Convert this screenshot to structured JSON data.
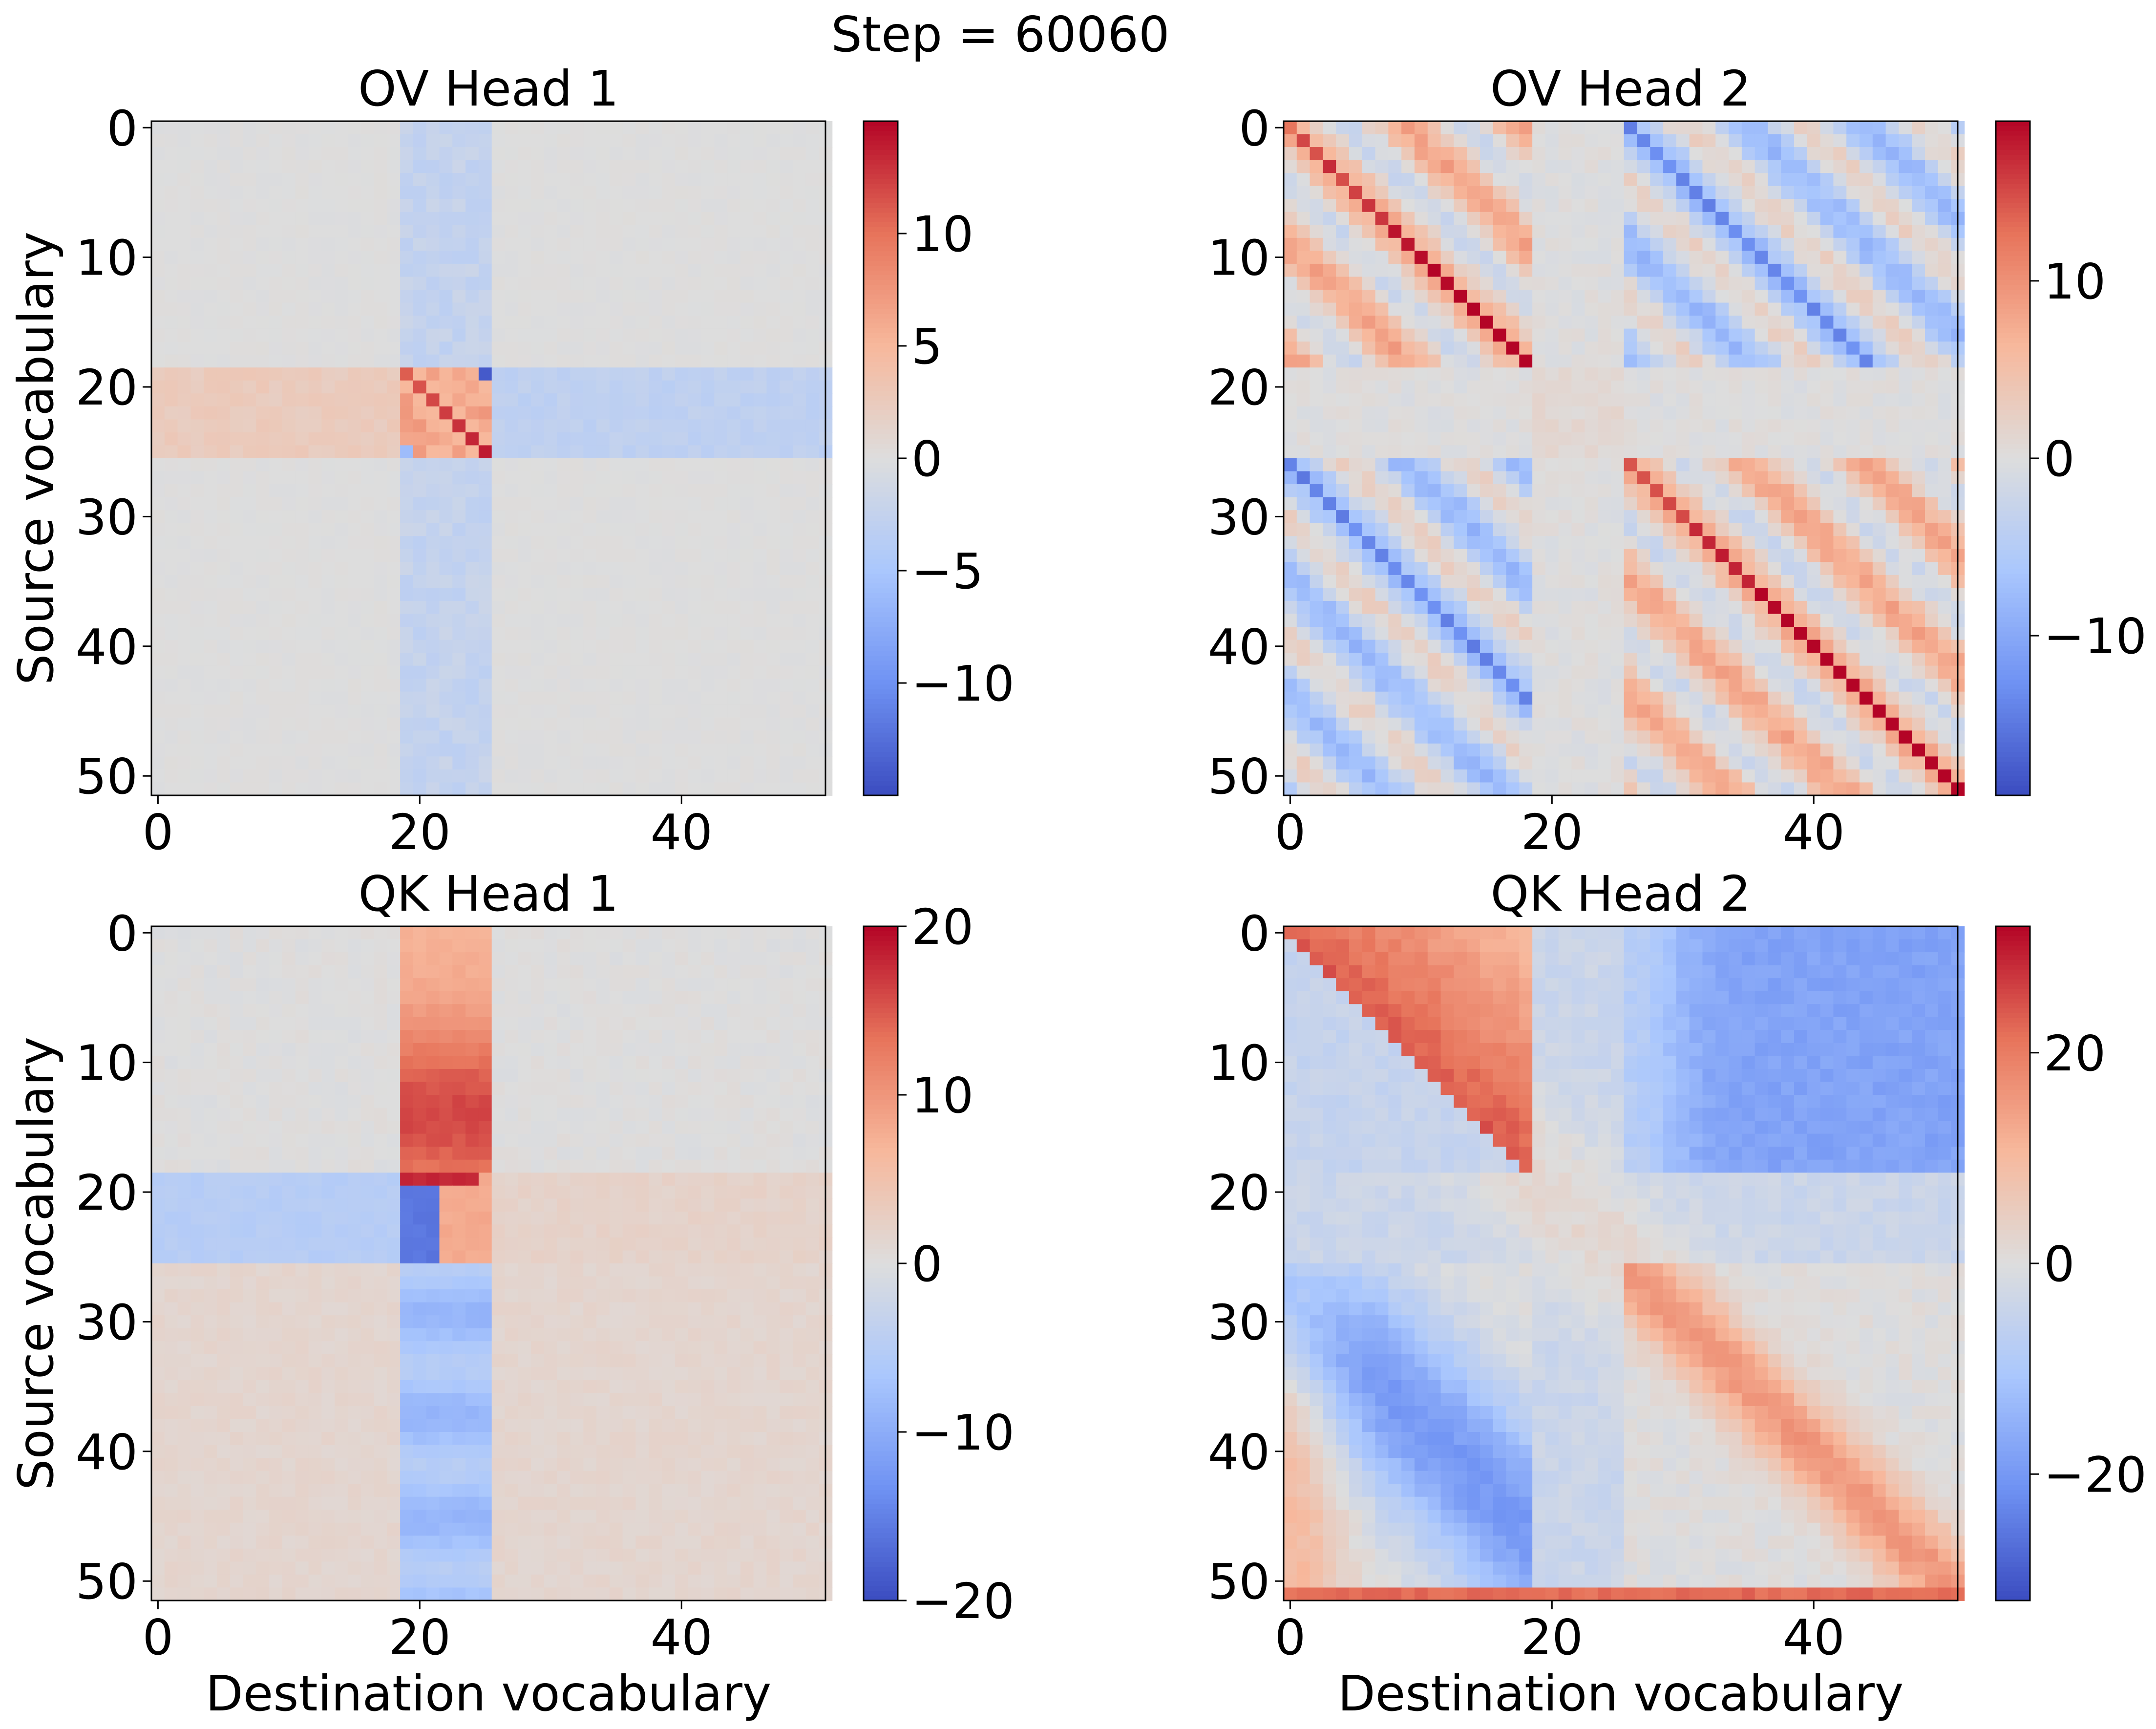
{
  "suptitle": "Step = 60060",
  "colormap": {
    "name": "coolwarm",
    "stops": [
      "#3b4cc0",
      "#6f92f3",
      "#aac7fd",
      "#dddddd",
      "#f7b89c",
      "#e7745b",
      "#b40426"
    ]
  },
  "chart_data": [
    {
      "type": "heatmap",
      "title": "OV Head 1",
      "xlabel": "",
      "ylabel": "Source vocabulary",
      "grid_size": 52,
      "xticks": [
        0,
        20,
        40
      ],
      "yticks": [
        0,
        10,
        20,
        30,
        40,
        50
      ],
      "vrange": [
        -15,
        15
      ],
      "colorbar_ticks": [
        10,
        5,
        0,
        -5,
        -10
      ],
      "pattern": "ov1"
    },
    {
      "type": "heatmap",
      "title": "OV Head 2",
      "xlabel": "",
      "ylabel": "",
      "grid_size": 52,
      "xticks": [
        0,
        20,
        40
      ],
      "yticks": [
        0,
        10,
        20,
        30,
        40,
        50
      ],
      "vrange": [
        -19,
        19
      ],
      "colorbar_ticks": [
        10,
        0,
        -10
      ],
      "pattern": "ov2"
    },
    {
      "type": "heatmap",
      "title": "QK Head 1",
      "xlabel": "Destination vocabulary",
      "ylabel": "Source vocabulary",
      "grid_size": 52,
      "xticks": [
        0,
        20,
        40
      ],
      "yticks": [
        0,
        10,
        20,
        30,
        40,
        50
      ],
      "vrange": [
        -20,
        20
      ],
      "colorbar_ticks": [
        20,
        10,
        0,
        -10,
        -20
      ],
      "pattern": "qk1"
    },
    {
      "type": "heatmap",
      "title": "QK Head 2",
      "xlabel": "Destination vocabulary",
      "ylabel": "",
      "grid_size": 52,
      "xticks": [
        0,
        20,
        40
      ],
      "yticks": [
        0,
        10,
        20,
        30,
        40,
        50
      ],
      "vrange": [
        -32,
        32
      ],
      "colorbar_ticks": [
        20,
        0,
        -20
      ],
      "pattern": "qk2"
    }
  ]
}
